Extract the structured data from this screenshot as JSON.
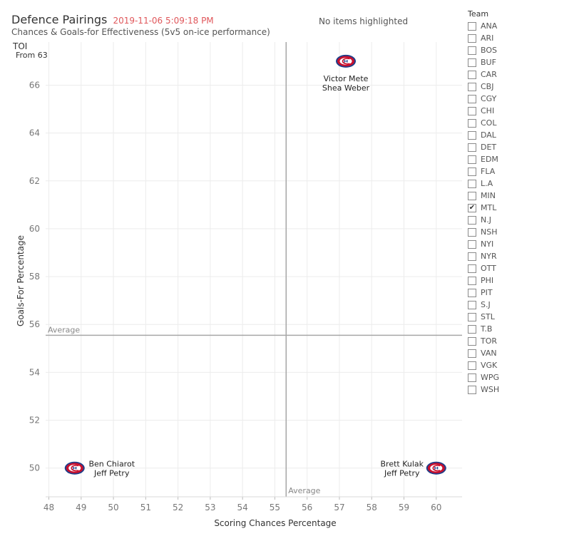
{
  "header": {
    "title": "Defence Pairings",
    "timestamp": "2019-11-06 5:09:18 PM",
    "subtitle": "Chances & Goals-for Effectiveness (5v5 on-ice performance)",
    "highlight_status": "No items highlighted"
  },
  "filter": {
    "label": "TOI",
    "value": "From 63"
  },
  "colors": {
    "mtl_red": "#c8102e",
    "mtl_blue": "#1d3e8a",
    "timestamp": "#e0575b",
    "grid": "#ececec",
    "avg_line": "#a6a6a6"
  },
  "chart_data": {
    "type": "scatter",
    "xlabel": "Scoring Chances Percentage",
    "ylabel": "Goals-For Percentage",
    "xlim": [
      47.9,
      60.8
    ],
    "ylim": [
      48.8,
      67.8
    ],
    "x_ticks": [
      48,
      49,
      50,
      51,
      52,
      53,
      54,
      55,
      56,
      57,
      58,
      59,
      60
    ],
    "y_ticks": [
      50,
      52,
      54,
      56,
      58,
      60,
      62,
      64,
      66
    ],
    "reference_lines": [
      {
        "axis": "x",
        "value": 55.35,
        "label": "Average"
      },
      {
        "axis": "y",
        "value": 55.55,
        "label": "Average"
      }
    ],
    "points": [
      {
        "x": 57.2,
        "y": 67.0,
        "team": "MTL",
        "label_line1": "Victor Mete",
        "label_line2": "Shea Weber"
      },
      {
        "x": 48.8,
        "y": 50.0,
        "team": "MTL",
        "label_line1": "Ben Chiarot",
        "label_line2": "Jeff Petry"
      },
      {
        "x": 60.0,
        "y": 50.0,
        "team": "MTL",
        "label_line1": "Brett Kulak",
        "label_line2": "Jeff Petry"
      }
    ]
  },
  "legend": {
    "title": "Team",
    "check_mark": "✔",
    "items": [
      {
        "label": "ANA",
        "checked": false
      },
      {
        "label": "ARI",
        "checked": false
      },
      {
        "label": "BOS",
        "checked": false
      },
      {
        "label": "BUF",
        "checked": false
      },
      {
        "label": "CAR",
        "checked": false
      },
      {
        "label": "CBJ",
        "checked": false
      },
      {
        "label": "CGY",
        "checked": false
      },
      {
        "label": "CHI",
        "checked": false
      },
      {
        "label": "COL",
        "checked": false
      },
      {
        "label": "DAL",
        "checked": false
      },
      {
        "label": "DET",
        "checked": false
      },
      {
        "label": "EDM",
        "checked": false
      },
      {
        "label": "FLA",
        "checked": false
      },
      {
        "label": "L.A",
        "checked": false
      },
      {
        "label": "MIN",
        "checked": false
      },
      {
        "label": "MTL",
        "checked": true
      },
      {
        "label": "N.J",
        "checked": false
      },
      {
        "label": "NSH",
        "checked": false
      },
      {
        "label": "NYI",
        "checked": false
      },
      {
        "label": "NYR",
        "checked": false
      },
      {
        "label": "OTT",
        "checked": false
      },
      {
        "label": "PHI",
        "checked": false
      },
      {
        "label": "PIT",
        "checked": false
      },
      {
        "label": "S.J",
        "checked": false
      },
      {
        "label": "STL",
        "checked": false
      },
      {
        "label": "T.B",
        "checked": false
      },
      {
        "label": "TOR",
        "checked": false
      },
      {
        "label": "VAN",
        "checked": false
      },
      {
        "label": "VGK",
        "checked": false
      },
      {
        "label": "WPG",
        "checked": false
      },
      {
        "label": "WSH",
        "checked": false
      }
    ]
  }
}
